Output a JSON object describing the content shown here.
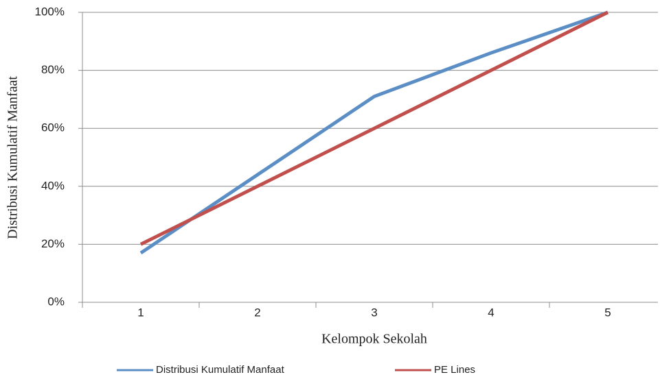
{
  "chart_data": {
    "type": "line",
    "categories": [
      "1",
      "2",
      "3",
      "4",
      "5"
    ],
    "series": [
      {
        "name": "Distribusi Kumulatif Manfaat",
        "color": "#5b8ec5",
        "values": [
          17,
          44,
          71,
          86,
          100
        ]
      },
      {
        "name": "PE Lines",
        "color": "#c0504d",
        "values": [
          20,
          40,
          60,
          80,
          100
        ]
      }
    ],
    "x_label": "Kelompok Sekolah",
    "y_label": "Distribusi Kumulatif Manfaat",
    "ylim": [
      0,
      100
    ],
    "yticks": [
      {
        "value": 0,
        "label": "0%"
      },
      {
        "value": 20,
        "label": "20%"
      },
      {
        "value": 40,
        "label": "40%"
      },
      {
        "value": 60,
        "label": "60%"
      },
      {
        "value": 80,
        "label": "80%"
      },
      {
        "value": 100,
        "label": "100%"
      }
    ],
    "grid": true,
    "legend": "bottom"
  }
}
